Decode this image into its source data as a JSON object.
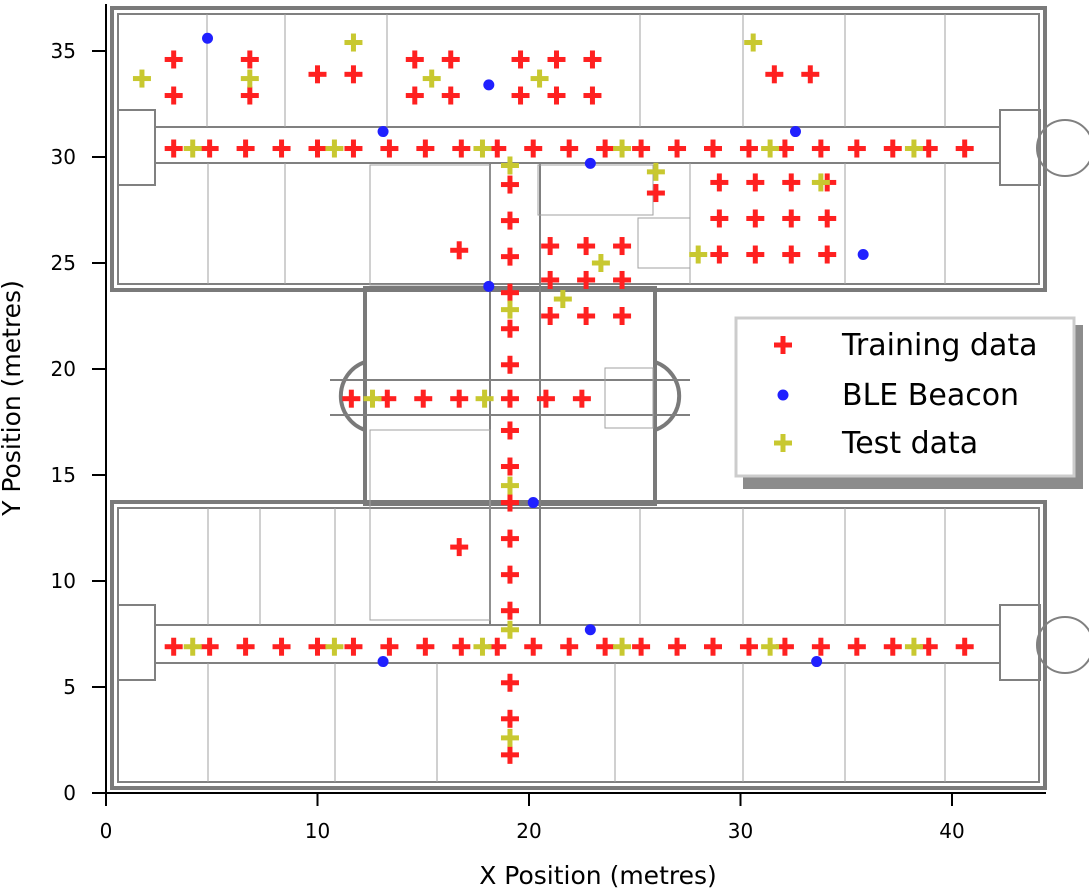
{
  "chart_data": {
    "type": "scatter",
    "title": "",
    "xlabel": "X Position (metres)",
    "ylabel": "Y Position (metres)",
    "xlim": [
      0,
      44
    ],
    "ylim": [
      0,
      37
    ],
    "xticks": [
      0,
      10,
      20,
      30,
      40
    ],
    "yticks": [
      0,
      5,
      10,
      15,
      20,
      25,
      30,
      35
    ],
    "xtick_labels": [
      "0",
      "10",
      "20",
      "30",
      "40"
    ],
    "ytick_labels": [
      "0",
      "5",
      "10",
      "15",
      "20",
      "25",
      "30",
      "35"
    ],
    "legend": {
      "position": "center-right",
      "entries": [
        "Training data",
        "BLE Beacon",
        "Test data"
      ]
    },
    "series": [
      {
        "name": "Training data",
        "marker": "plus",
        "color": "#ff2020",
        "points": [
          [
            3.2,
            34.6
          ],
          [
            3.2,
            32.9
          ],
          [
            6.8,
            34.6
          ],
          [
            6.8,
            32.9
          ],
          [
            10.0,
            33.9
          ],
          [
            11.7,
            33.9
          ],
          [
            14.6,
            34.6
          ],
          [
            14.6,
            32.9
          ],
          [
            16.3,
            34.6
          ],
          [
            16.3,
            32.9
          ],
          [
            19.6,
            34.6
          ],
          [
            19.6,
            32.9
          ],
          [
            21.3,
            34.6
          ],
          [
            21.3,
            32.9
          ],
          [
            23.0,
            34.6
          ],
          [
            23.0,
            32.9
          ],
          [
            31.6,
            33.9
          ],
          [
            33.3,
            33.9
          ],
          [
            3.2,
            30.4
          ],
          [
            4.9,
            30.4
          ],
          [
            6.6,
            30.4
          ],
          [
            8.3,
            30.4
          ],
          [
            10.0,
            30.4
          ],
          [
            11.7,
            30.4
          ],
          [
            13.4,
            30.4
          ],
          [
            15.1,
            30.4
          ],
          [
            16.8,
            30.4
          ],
          [
            18.5,
            30.4
          ],
          [
            20.2,
            30.4
          ],
          [
            21.9,
            30.4
          ],
          [
            23.6,
            30.4
          ],
          [
            25.3,
            30.4
          ],
          [
            27.0,
            30.4
          ],
          [
            28.7,
            30.4
          ],
          [
            30.4,
            30.4
          ],
          [
            32.1,
            30.4
          ],
          [
            33.8,
            30.4
          ],
          [
            35.5,
            30.4
          ],
          [
            37.2,
            30.4
          ],
          [
            38.9,
            30.4
          ],
          [
            40.6,
            30.4
          ],
          [
            19.1,
            28.7
          ],
          [
            19.1,
            27.0
          ],
          [
            19.1,
            25.3
          ],
          [
            19.1,
            23.6
          ],
          [
            19.1,
            21.9
          ],
          [
            19.1,
            20.2
          ],
          [
            19.1,
            18.6
          ],
          [
            19.1,
            17.1
          ],
          [
            19.1,
            15.4
          ],
          [
            19.1,
            13.7
          ],
          [
            19.1,
            12.0
          ],
          [
            19.1,
            10.3
          ],
          [
            19.1,
            8.6
          ],
          [
            19.1,
            5.2
          ],
          [
            19.1,
            3.5
          ],
          [
            19.1,
            1.8
          ],
          [
            26.0,
            28.3
          ],
          [
            29.0,
            28.8
          ],
          [
            30.7,
            28.8
          ],
          [
            32.4,
            28.8
          ],
          [
            34.1,
            28.8
          ],
          [
            29.0,
            27.1
          ],
          [
            30.7,
            27.1
          ],
          [
            32.4,
            27.1
          ],
          [
            34.1,
            27.1
          ],
          [
            29.0,
            25.4
          ],
          [
            30.7,
            25.4
          ],
          [
            32.4,
            25.4
          ],
          [
            34.1,
            25.4
          ],
          [
            16.7,
            25.6
          ],
          [
            21.0,
            25.8
          ],
          [
            22.7,
            25.8
          ],
          [
            24.4,
            25.8
          ],
          [
            21.0,
            24.2
          ],
          [
            22.7,
            24.2
          ],
          [
            24.4,
            24.2
          ],
          [
            21.0,
            22.5
          ],
          [
            22.7,
            22.5
          ],
          [
            24.4,
            22.5
          ],
          [
            11.6,
            18.6
          ],
          [
            13.3,
            18.6
          ],
          [
            15.0,
            18.6
          ],
          [
            16.7,
            18.6
          ],
          [
            20.8,
            18.6
          ],
          [
            22.5,
            18.6
          ],
          [
            16.7,
            11.6
          ],
          [
            3.2,
            6.9
          ],
          [
            4.9,
            6.9
          ],
          [
            6.6,
            6.9
          ],
          [
            8.3,
            6.9
          ],
          [
            10.0,
            6.9
          ],
          [
            11.7,
            6.9
          ],
          [
            13.4,
            6.9
          ],
          [
            15.1,
            6.9
          ],
          [
            16.8,
            6.9
          ],
          [
            18.5,
            6.9
          ],
          [
            20.2,
            6.9
          ],
          [
            21.9,
            6.9
          ],
          [
            23.6,
            6.9
          ],
          [
            25.3,
            6.9
          ],
          [
            27.0,
            6.9
          ],
          [
            28.7,
            6.9
          ],
          [
            30.4,
            6.9
          ],
          [
            32.1,
            6.9
          ],
          [
            33.8,
            6.9
          ],
          [
            35.5,
            6.9
          ],
          [
            37.2,
            6.9
          ],
          [
            38.9,
            6.9
          ],
          [
            40.6,
            6.9
          ]
        ]
      },
      {
        "name": "BLE Beacon",
        "marker": "circle",
        "color": "#2020ff",
        "points": [
          [
            4.8,
            35.6
          ],
          [
            18.1,
            33.4
          ],
          [
            13.1,
            31.2
          ],
          [
            22.9,
            29.7
          ],
          [
            32.6,
            31.2
          ],
          [
            35.8,
            25.4
          ],
          [
            18.1,
            23.9
          ],
          [
            20.2,
            13.7
          ],
          [
            22.9,
            7.7
          ],
          [
            13.1,
            6.2
          ],
          [
            33.6,
            6.2
          ]
        ]
      },
      {
        "name": "Test data",
        "marker": "plus",
        "color": "#c8c830",
        "points": [
          [
            1.7,
            33.7
          ],
          [
            6.8,
            33.7
          ],
          [
            11.7,
            35.4
          ],
          [
            15.4,
            33.7
          ],
          [
            20.5,
            33.7
          ],
          [
            30.6,
            35.4
          ],
          [
            4.1,
            30.4
          ],
          [
            10.8,
            30.4
          ],
          [
            17.8,
            30.4
          ],
          [
            24.4,
            30.4
          ],
          [
            31.4,
            30.4
          ],
          [
            38.2,
            30.4
          ],
          [
            19.1,
            29.6
          ],
          [
            26.0,
            29.3
          ],
          [
            33.8,
            28.8
          ],
          [
            28.0,
            25.4
          ],
          [
            23.4,
            25.0
          ],
          [
            21.6,
            23.3
          ],
          [
            19.1,
            22.8
          ],
          [
            12.6,
            18.6
          ],
          [
            17.9,
            18.6
          ],
          [
            19.1,
            14.5
          ],
          [
            19.1,
            7.7
          ],
          [
            4.1,
            6.9
          ],
          [
            10.8,
            6.9
          ],
          [
            17.8,
            6.9
          ],
          [
            24.4,
            6.9
          ],
          [
            31.4,
            6.9
          ],
          [
            38.2,
            6.9
          ],
          [
            19.1,
            2.6
          ]
        ]
      }
    ]
  }
}
